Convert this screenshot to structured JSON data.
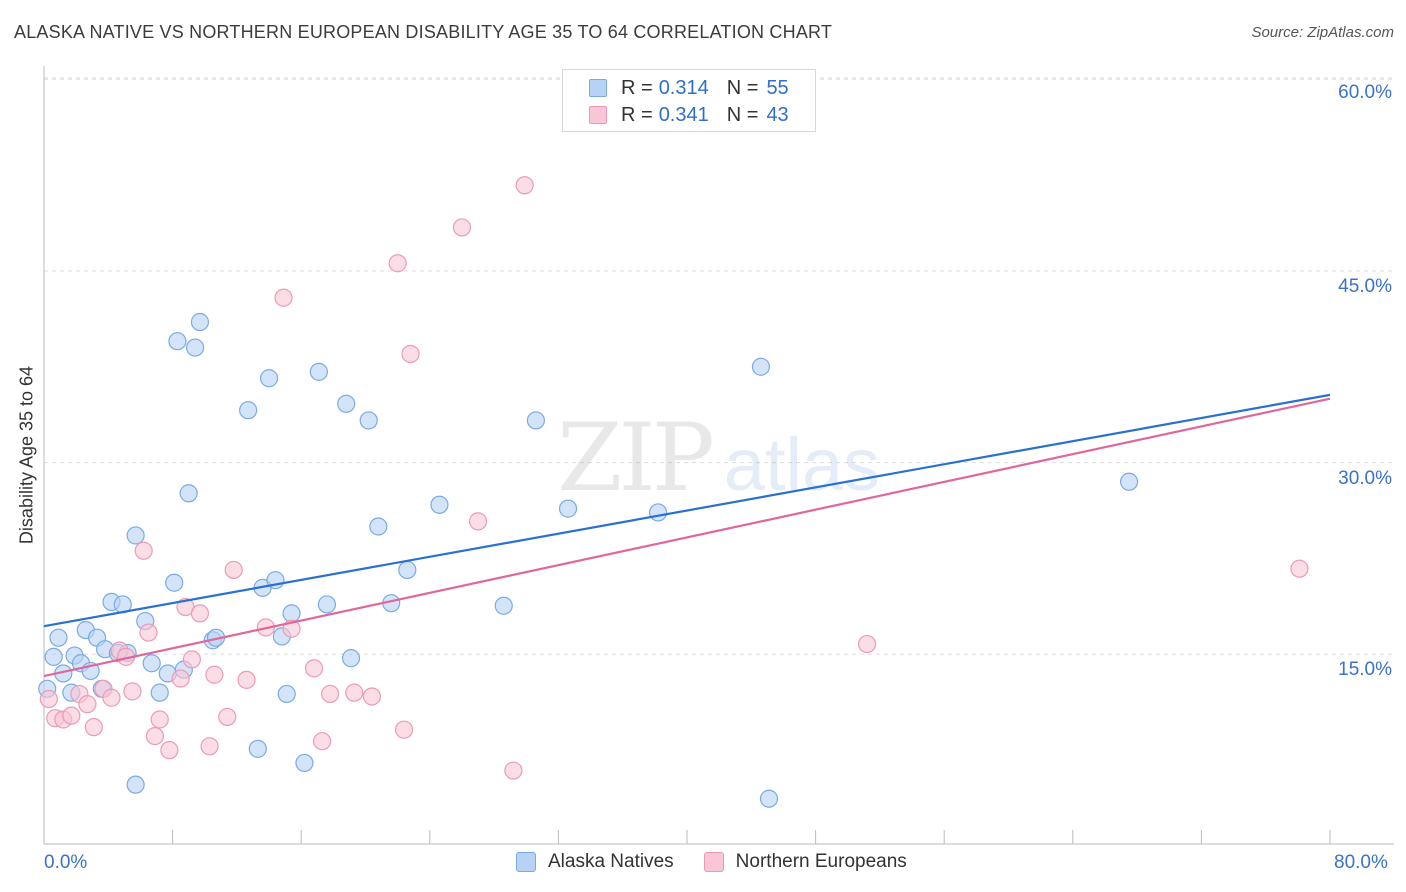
{
  "header": {
    "title": "ALASKA NATIVE VS NORTHERN EUROPEAN DISABILITY AGE 35 TO 64 CORRELATION CHART",
    "source": "Source: ZipAtlas.com"
  },
  "watermark": {
    "zip": "ZIP",
    "atlas": "atlas"
  },
  "colors": {
    "blue_fill": "#b7d2f4",
    "blue_stroke": "#7aaae6",
    "blue_line": "#2a70d0",
    "pink_fill": "#f8c6d6",
    "pink_stroke": "#ee9ab6",
    "pink_line": "#e0679a",
    "grid": "#dddddd",
    "tick_text": "#3a72c9"
  },
  "legend_top": {
    "rows": [
      {
        "r_label": "R =",
        "r_value": "0.314",
        "n_label": "N =",
        "n_value": "55"
      },
      {
        "r_label": "R =",
        "r_value": "0.341",
        "n_label": "N =",
        "n_value": "43"
      }
    ]
  },
  "legend_bottom": {
    "items": [
      "Alaska Natives",
      "Northern Europeans"
    ]
  },
  "chart_data": {
    "type": "scatter",
    "title": "ALASKA NATIVE VS NORTHERN EUROPEAN DISABILITY AGE 35 TO 64 CORRELATION CHART",
    "xlabel": "",
    "ylabel": "Disability Age 35 to 64",
    "xlim": [
      0,
      80
    ],
    "ylim": [
      0,
      62
    ],
    "x_tick_labels": {
      "min": "0.0%",
      "max": "80.0%"
    },
    "y_ticks": [
      15,
      30,
      45,
      60
    ],
    "y_tick_labels": [
      "15.0%",
      "30.0%",
      "45.0%",
      "60.0%"
    ],
    "x_minor_ticks": [
      0,
      8,
      16,
      24,
      32,
      40,
      48,
      56,
      64,
      72,
      80
    ],
    "grid": true,
    "legend_position": "top-center",
    "series": [
      {
        "name": "Alaska Natives",
        "r": 0.314,
        "n": 55,
        "trend": {
          "x0": 0,
          "y0": 17.2,
          "x1": 80,
          "y1": 35.3
        },
        "points": [
          [
            0.2,
            12.3
          ],
          [
            0.6,
            14.8
          ],
          [
            0.9,
            16.3
          ],
          [
            1.2,
            13.5
          ],
          [
            1.7,
            12.0
          ],
          [
            1.9,
            14.9
          ],
          [
            2.3,
            14.3
          ],
          [
            2.6,
            16.9
          ],
          [
            2.9,
            13.7
          ],
          [
            3.3,
            16.3
          ],
          [
            3.6,
            12.3
          ],
          [
            3.8,
            15.4
          ],
          [
            4.2,
            19.1
          ],
          [
            4.6,
            15.1
          ],
          [
            4.9,
            18.9
          ],
          [
            5.2,
            15.1
          ],
          [
            5.7,
            24.3
          ],
          [
            5.7,
            4.8
          ],
          [
            6.3,
            17.6
          ],
          [
            6.7,
            14.3
          ],
          [
            7.2,
            12.0
          ],
          [
            7.7,
            13.5
          ],
          [
            8.1,
            20.6
          ],
          [
            8.3,
            39.5
          ],
          [
            8.7,
            13.8
          ],
          [
            9.0,
            27.6
          ],
          [
            9.4,
            39.0
          ],
          [
            9.7,
            41.0
          ],
          [
            10.5,
            16.1
          ],
          [
            10.7,
            16.3
          ],
          [
            12.7,
            34.1
          ],
          [
            13.3,
            7.6
          ],
          [
            13.6,
            20.2
          ],
          [
            14.0,
            36.6
          ],
          [
            14.4,
            20.8
          ],
          [
            14.8,
            16.4
          ],
          [
            15.1,
            11.9
          ],
          [
            15.4,
            18.2
          ],
          [
            16.2,
            6.5
          ],
          [
            17.1,
            37.1
          ],
          [
            17.6,
            18.9
          ],
          [
            18.8,
            34.6
          ],
          [
            19.1,
            14.7
          ],
          [
            20.2,
            33.3
          ],
          [
            20.8,
            25.0
          ],
          [
            21.6,
            19.0
          ],
          [
            22.6,
            21.6
          ],
          [
            24.6,
            26.7
          ],
          [
            28.6,
            18.8
          ],
          [
            30.6,
            33.3
          ],
          [
            32.6,
            26.4
          ],
          [
            38.2,
            26.1
          ],
          [
            44.6,
            37.5
          ],
          [
            45.1,
            3.7
          ],
          [
            67.5,
            28.5
          ]
        ]
      },
      {
        "name": "Northern Europeans",
        "r": 0.341,
        "n": 43,
        "trend": {
          "x0": 0,
          "y0": 13.3,
          "x1": 80,
          "y1": 35.0
        },
        "points": [
          [
            0.3,
            11.5
          ],
          [
            0.7,
            10.0
          ],
          [
            1.2,
            9.9
          ],
          [
            1.7,
            10.2
          ],
          [
            2.2,
            11.9
          ],
          [
            2.7,
            11.1
          ],
          [
            3.1,
            9.3
          ],
          [
            3.7,
            12.3
          ],
          [
            4.2,
            11.6
          ],
          [
            4.7,
            15.3
          ],
          [
            5.1,
            14.8
          ],
          [
            5.5,
            12.1
          ],
          [
            6.2,
            23.1
          ],
          [
            6.5,
            16.7
          ],
          [
            6.9,
            8.6
          ],
          [
            7.2,
            9.9
          ],
          [
            7.8,
            7.5
          ],
          [
            8.5,
            13.1
          ],
          [
            8.8,
            18.7
          ],
          [
            9.2,
            14.6
          ],
          [
            9.7,
            18.2
          ],
          [
            10.3,
            7.8
          ],
          [
            10.6,
            13.4
          ],
          [
            11.4,
            10.1
          ],
          [
            11.8,
            21.6
          ],
          [
            12.6,
            13.0
          ],
          [
            13.8,
            17.1
          ],
          [
            14.9,
            42.9
          ],
          [
            15.4,
            17.0
          ],
          [
            16.8,
            13.9
          ],
          [
            17.3,
            8.2
          ],
          [
            17.8,
            11.9
          ],
          [
            19.3,
            12.0
          ],
          [
            20.4,
            11.7
          ],
          [
            22.0,
            45.6
          ],
          [
            22.4,
            9.1
          ],
          [
            22.8,
            38.5
          ],
          [
            26.0,
            48.4
          ],
          [
            27.0,
            25.4
          ],
          [
            29.2,
            5.9
          ],
          [
            29.9,
            51.7
          ],
          [
            51.2,
            15.8
          ],
          [
            78.1,
            21.7
          ]
        ]
      }
    ]
  }
}
